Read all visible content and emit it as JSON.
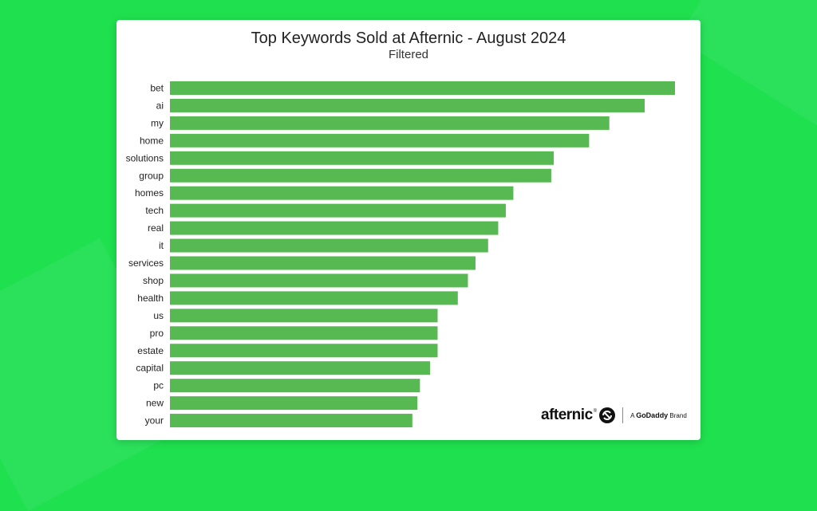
{
  "chart_data": {
    "type": "bar",
    "orientation": "horizontal",
    "title": "Top Keywords Sold at Afternic - August 2024",
    "subtitle": "Filtered",
    "categories": [
      "bet",
      "ai",
      "my",
      "home",
      "solutions",
      "group",
      "homes",
      "tech",
      "real",
      "it",
      "services",
      "shop",
      "health",
      "us",
      "pro",
      "estate",
      "capital",
      "pc",
      "new",
      "your"
    ],
    "values": [
      100,
      94,
      87,
      83,
      76,
      75.5,
      68,
      66.5,
      65,
      63,
      60.5,
      59,
      57,
      53,
      53,
      53,
      51.5,
      49.5,
      49,
      48
    ],
    "xlabel": "",
    "ylabel": "",
    "grid": false,
    "legend": "none",
    "bar_color": "#57b952"
  },
  "logo": {
    "wordmark": "afternic",
    "trademark": "®",
    "brand_prefix": "A ",
    "brand_name": "GoDaddy",
    "brand_suffix": " Brand"
  }
}
